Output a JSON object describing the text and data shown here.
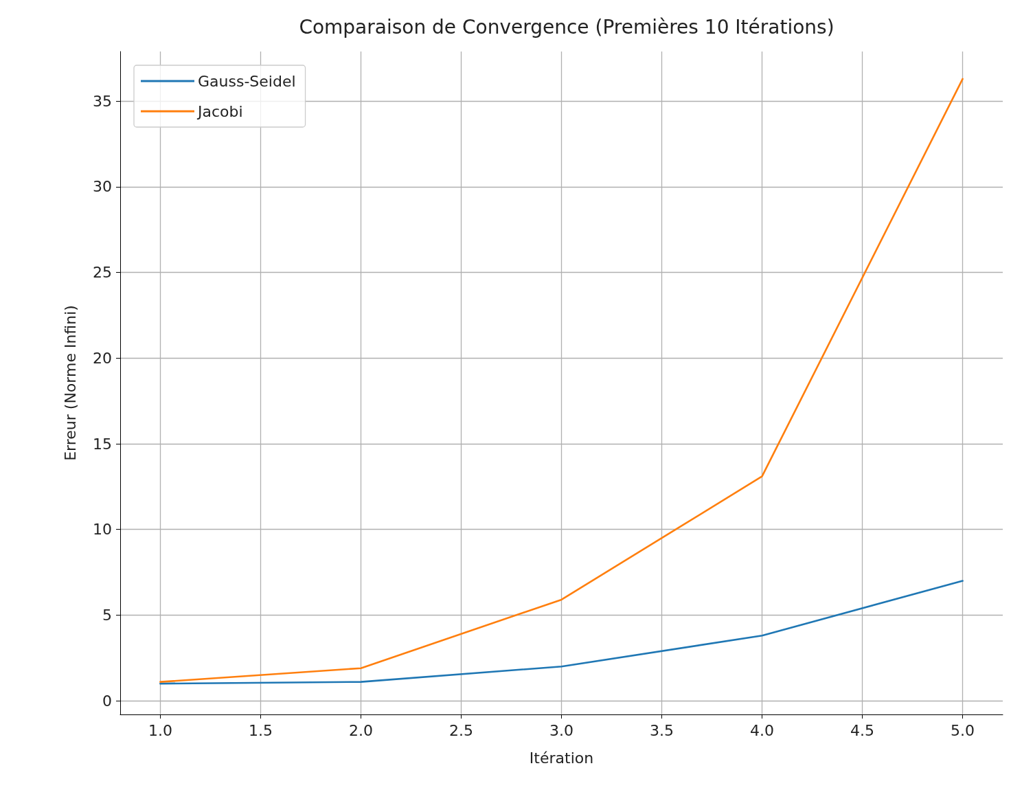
{
  "chart_data": {
    "type": "line",
    "title": "Comparaison de Convergence (Premières 10 Itérations)",
    "xlabel": "Itération",
    "ylabel": "Erreur (Norme Infini)",
    "x": [
      1,
      2,
      3,
      4,
      5
    ],
    "series": [
      {
        "name": "Gauss-Seidel",
        "color": "#1f77b4",
        "values": [
          1.0,
          1.1,
          2.0,
          3.8,
          7.0
        ]
      },
      {
        "name": "Jacobi",
        "color": "#ff7f0e",
        "values": [
          1.1,
          1.9,
          5.9,
          13.1,
          36.3
        ]
      }
    ],
    "xlim": [
      0.8,
      5.2
    ],
    "ylim": [
      -0.8,
      37.9
    ],
    "xticks": [
      {
        "value": 1,
        "label": "1.0"
      },
      {
        "value": 1.5,
        "label": "1.5"
      },
      {
        "value": 2,
        "label": "2.0"
      },
      {
        "value": 2.5,
        "label": "2.5"
      },
      {
        "value": 3,
        "label": "3.0"
      },
      {
        "value": 3.5,
        "label": "3.5"
      },
      {
        "value": 4,
        "label": "4.0"
      },
      {
        "value": 4.5,
        "label": "4.5"
      },
      {
        "value": 5,
        "label": "5.0"
      }
    ],
    "yticks": [
      0,
      5,
      10,
      15,
      20,
      25,
      30,
      35
    ],
    "grid": true,
    "legend": "top left",
    "marker": "none",
    "line_style": "solid"
  }
}
